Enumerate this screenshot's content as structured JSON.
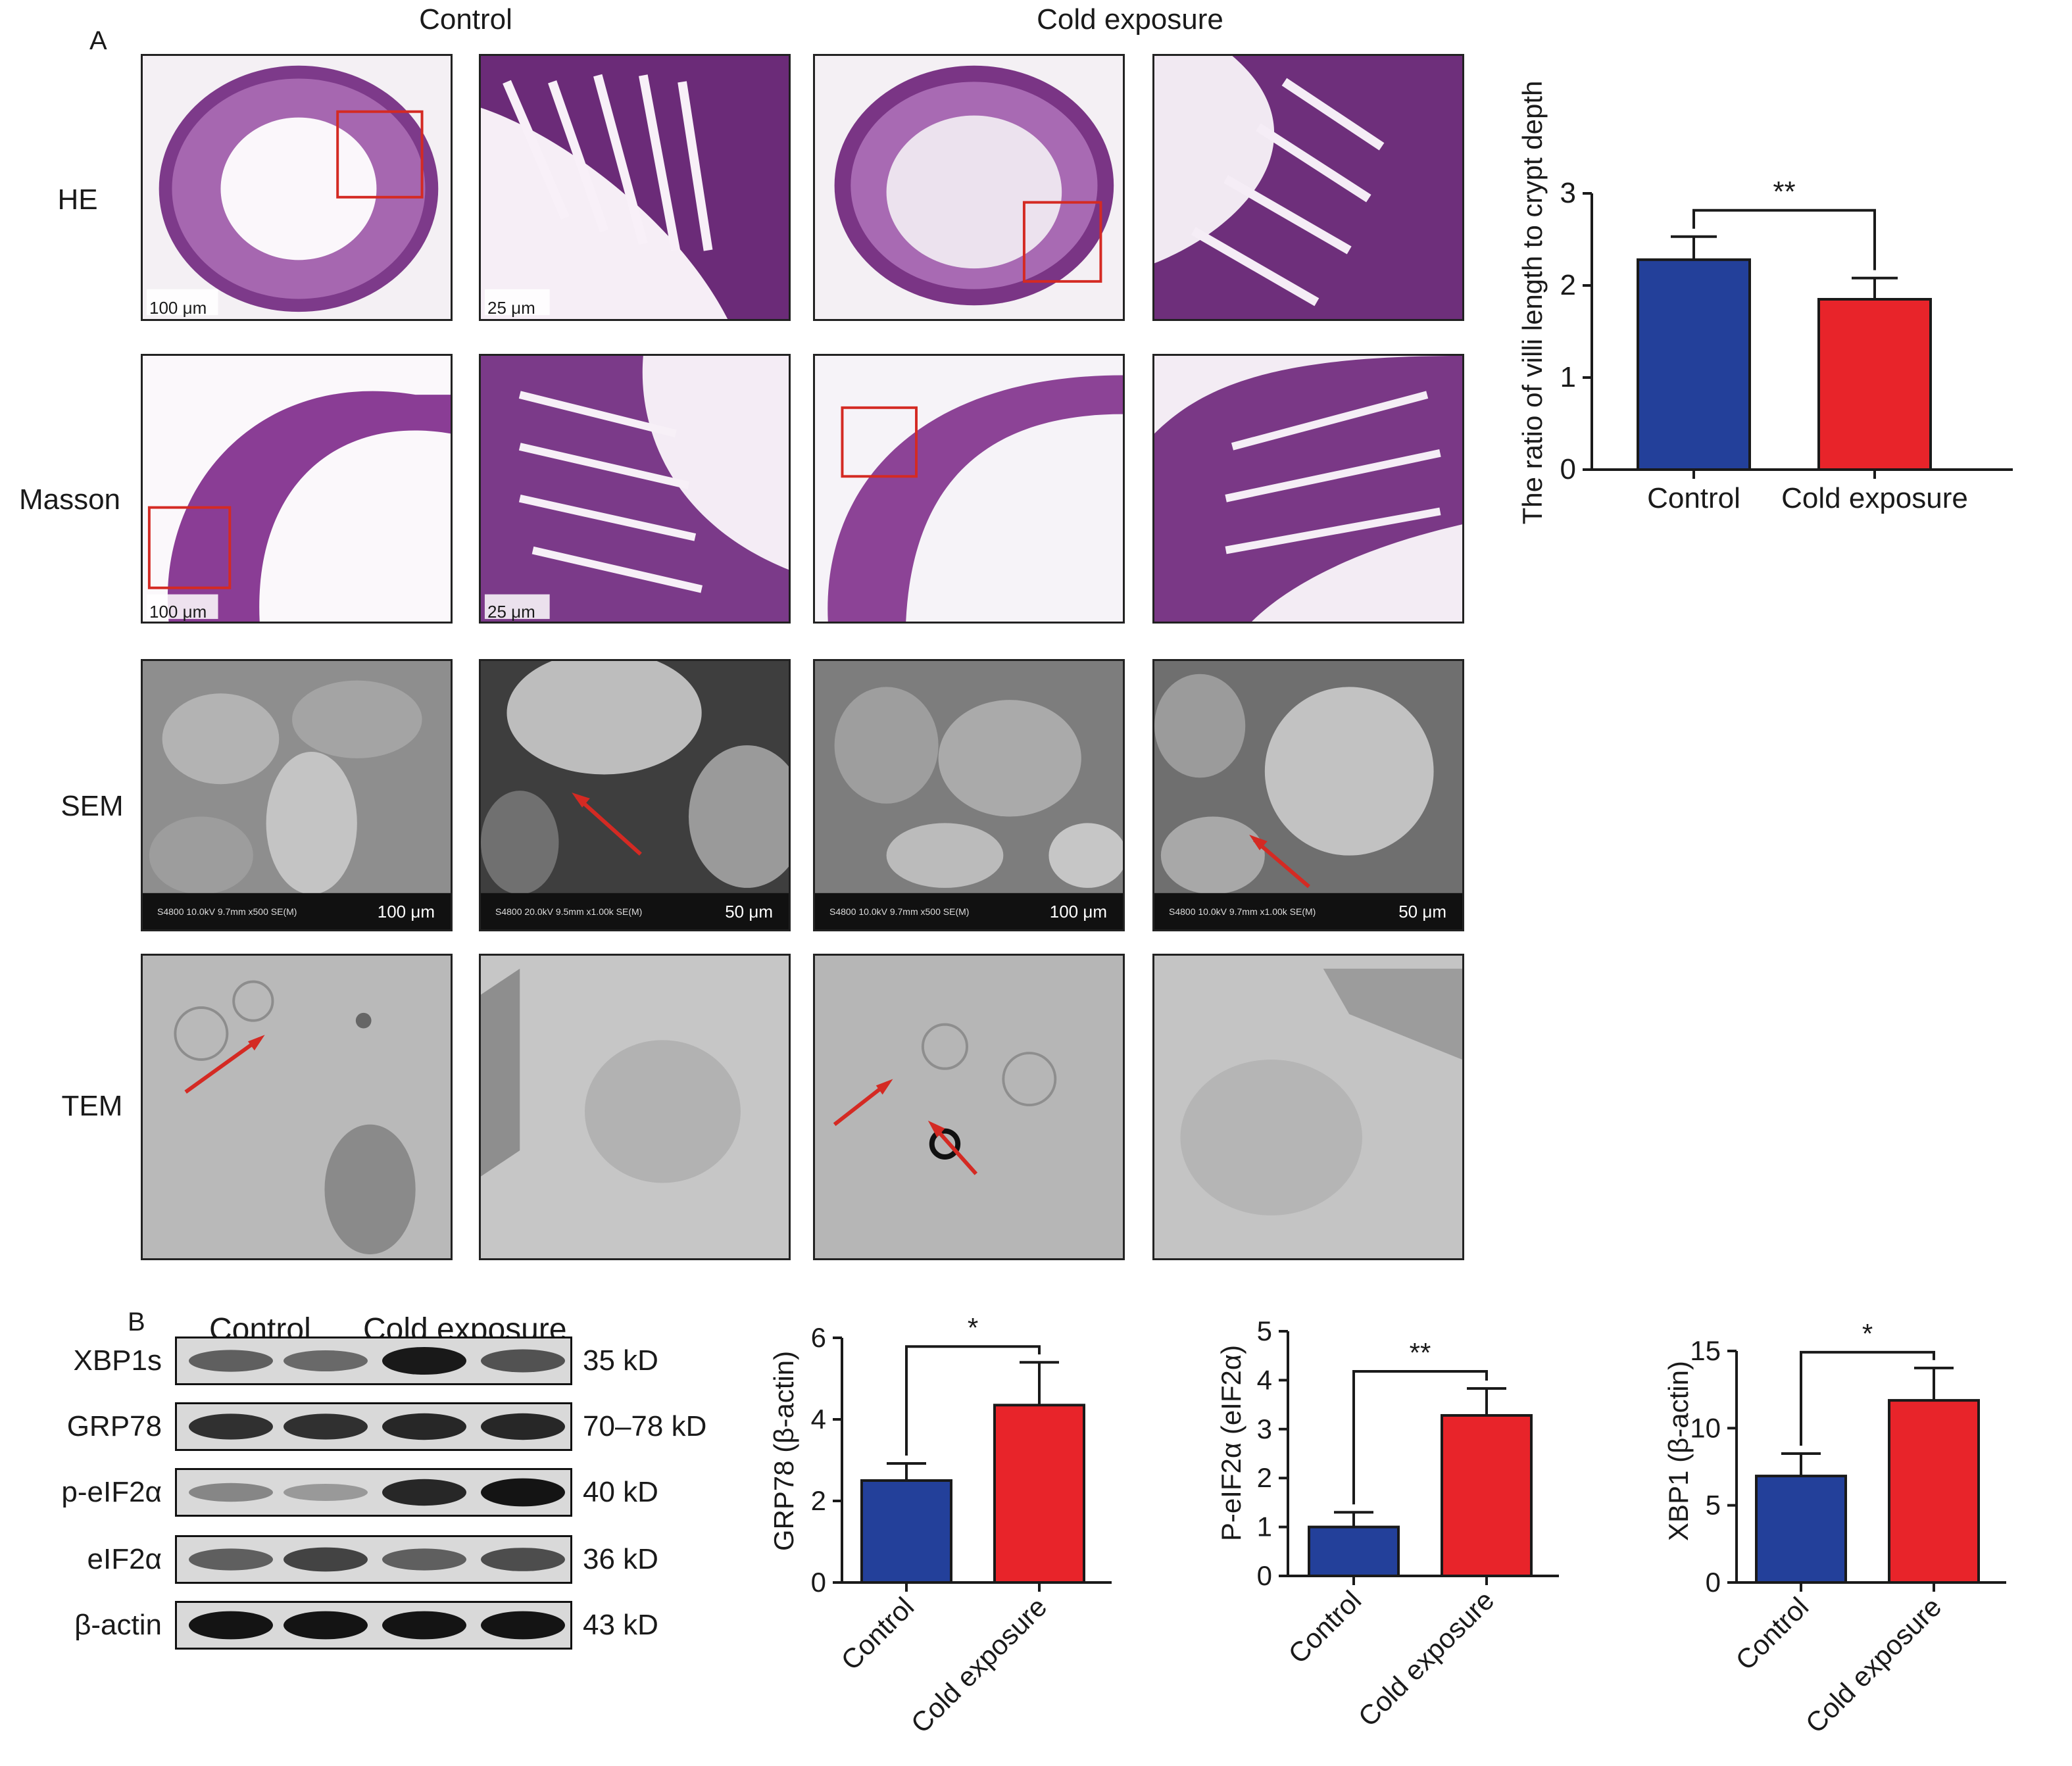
{
  "figure": {
    "panel_a_label": "A",
    "panel_b_label": "B",
    "column_headers": [
      "Control",
      "Cold exposure"
    ],
    "row_labels": [
      "HE",
      "Masson",
      "SEM",
      "TEM"
    ],
    "scale_bars": {
      "he_overview": "100 μm",
      "he_zoom": "25 μm",
      "masson_overview": "100 μm",
      "masson_zoom": "25 μm"
    },
    "sem_footers": [
      {
        "info": "S4800 10.0kV 9.7mm x500 SE(M)",
        "scale": "100 μm"
      },
      {
        "info": "S4800 20.0kV 9.5mm x1.00k SE(M)",
        "scale": "50 μm"
      },
      {
        "info": "S4800 10.0kV 9.7mm x500 SE(M)",
        "scale": "100 μm"
      },
      {
        "info": "S4800 10.0kV 9.7mm x1.00k SE(M)",
        "scale": "50 μm"
      }
    ],
    "western_blot": {
      "group_headers": [
        "Control",
        "Cold exposure"
      ],
      "bands": [
        {
          "name": "XBP1s",
          "size": "35 kD",
          "intensity": [
            0.55,
            0.5,
            0.92,
            0.62
          ]
        },
        {
          "name": "GRP78",
          "size": "70–78 kD",
          "intensity": [
            0.8,
            0.8,
            0.85,
            0.85
          ]
        },
        {
          "name": "p-eIF2α",
          "size": "40 kD",
          "intensity": [
            0.35,
            0.25,
            0.85,
            0.95
          ]
        },
        {
          "name": "eIF2α",
          "size": "36 kD",
          "intensity": [
            0.55,
            0.7,
            0.55,
            0.65
          ]
        },
        {
          "name": "β-actin",
          "size": "43 kD",
          "intensity": [
            0.95,
            0.95,
            0.95,
            0.95
          ]
        }
      ]
    }
  },
  "colors": {
    "control": "#23409a",
    "cold_exposure": "#e8242a",
    "annotation_red": "#d42a23"
  },
  "chart_data": [
    {
      "type": "bar",
      "categories": [
        "Control",
        "Cold exposure"
      ],
      "values": [
        2.28,
        1.85
      ],
      "error": [
        0.25,
        0.23
      ],
      "ylabel": "The ratio of villi length to crypt depth",
      "ylim": [
        0,
        3
      ],
      "yticks": [
        0,
        1,
        2,
        3
      ],
      "significance": "**"
    },
    {
      "type": "bar",
      "categories": [
        "Control",
        "Cold exposure"
      ],
      "values": [
        2.5,
        4.35
      ],
      "error": [
        0.42,
        1.05
      ],
      "ylabel": "GRP78 (β-actin)",
      "ylim": [
        0,
        6
      ],
      "yticks": [
        0,
        2,
        4,
        6
      ],
      "significance": "*"
    },
    {
      "type": "bar",
      "categories": [
        "Control",
        "Cold exposure"
      ],
      "values": [
        1.0,
        3.28
      ],
      "error": [
        0.3,
        0.55
      ],
      "ylabel": "P-eIF2α (eIF2α)",
      "ylim": [
        0,
        5
      ],
      "yticks": [
        0,
        1,
        2,
        3,
        4,
        5
      ],
      "significance": "**"
    },
    {
      "type": "bar",
      "categories": [
        "Control",
        "Cold exposure"
      ],
      "values": [
        6.9,
        11.8
      ],
      "error": [
        1.45,
        2.1
      ],
      "ylabel": "XBP1 (β-actin)",
      "ylim": [
        0,
        15
      ],
      "yticks": [
        0,
        5,
        10,
        15
      ],
      "significance": "*"
    }
  ]
}
